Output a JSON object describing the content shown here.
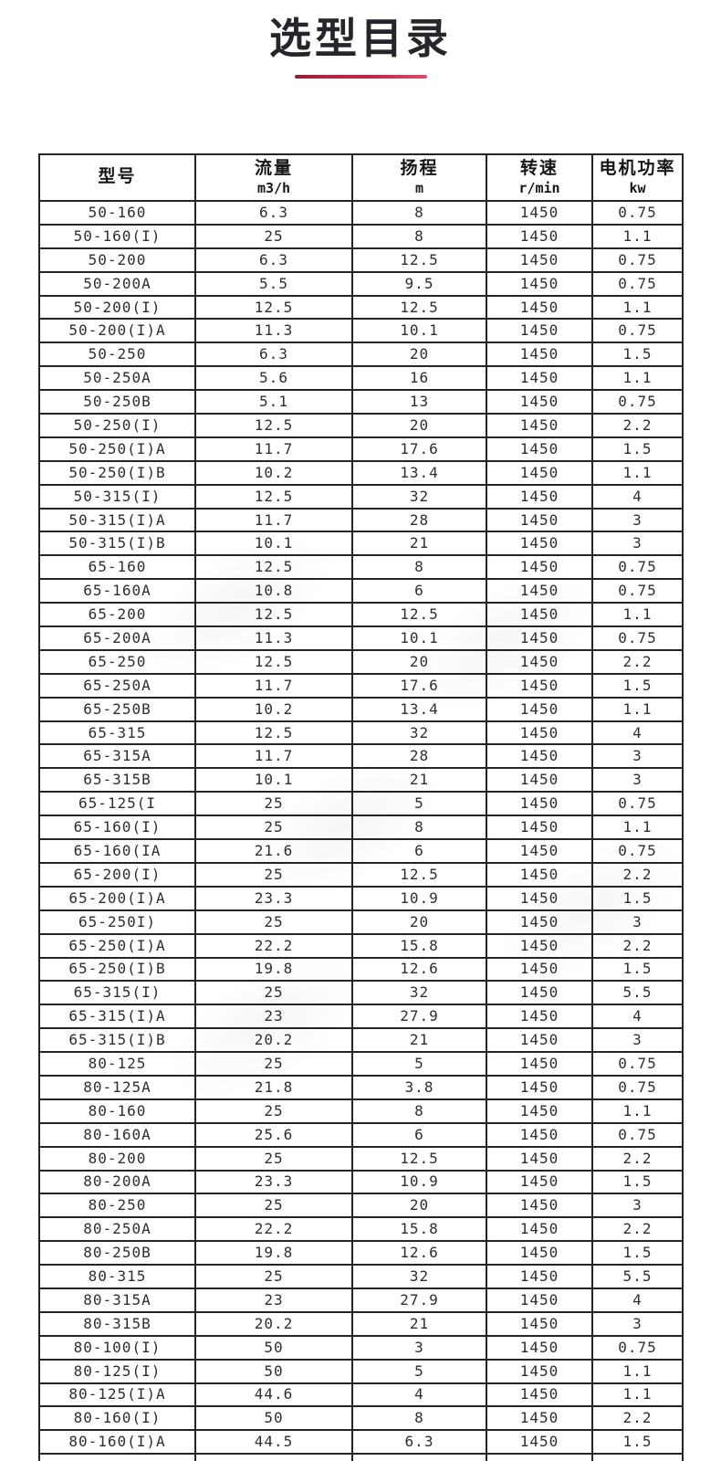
{
  "page": {
    "title": "选型目录"
  },
  "theme": {
    "accent_red": "#c02748",
    "border_color": "#242424",
    "text_color": "#2e2e2e"
  },
  "table": {
    "columns": [
      {
        "label": "型号",
        "unit": ""
      },
      {
        "label": "流量",
        "unit": "m3/h"
      },
      {
        "label": "扬程",
        "unit": "m"
      },
      {
        "label": "转速",
        "unit": "r/min"
      },
      {
        "label": "电机功率",
        "unit": "kw"
      }
    ],
    "rows": [
      [
        "50-160",
        "6.3",
        "8",
        "1450",
        "0.75"
      ],
      [
        "50-160(I)",
        "25",
        "8",
        "1450",
        "1.1"
      ],
      [
        "50-200",
        "6.3",
        "12.5",
        "1450",
        "0.75"
      ],
      [
        "50-200A",
        "5.5",
        "9.5",
        "1450",
        "0.75"
      ],
      [
        "50-200(I)",
        "12.5",
        "12.5",
        "1450",
        "1.1"
      ],
      [
        "50-200(I)A",
        "11.3",
        "10.1",
        "1450",
        "0.75"
      ],
      [
        "50-250",
        "6.3",
        "20",
        "1450",
        "1.5"
      ],
      [
        "50-250A",
        "5.6",
        "16",
        "1450",
        "1.1"
      ],
      [
        "50-250B",
        "5.1",
        "13",
        "1450",
        "0.75"
      ],
      [
        "50-250(I)",
        "12.5",
        "20",
        "1450",
        "2.2"
      ],
      [
        "50-250(I)A",
        "11.7",
        "17.6",
        "1450",
        "1.5"
      ],
      [
        "50-250(I)B",
        "10.2",
        "13.4",
        "1450",
        "1.1"
      ],
      [
        "50-315(I)",
        "12.5",
        "32",
        "1450",
        "4"
      ],
      [
        "50-315(I)A",
        "11.7",
        "28",
        "1450",
        "3"
      ],
      [
        "50-315(I)B",
        "10.1",
        "21",
        "1450",
        "3"
      ],
      [
        "65-160",
        "12.5",
        "8",
        "1450",
        "0.75"
      ],
      [
        "65-160A",
        "10.8",
        "6",
        "1450",
        "0.75"
      ],
      [
        "65-200",
        "12.5",
        "12.5",
        "1450",
        "1.1"
      ],
      [
        "65-200A",
        "11.3",
        "10.1",
        "1450",
        "0.75"
      ],
      [
        "65-250",
        "12.5",
        "20",
        "1450",
        "2.2"
      ],
      [
        "65-250A",
        "11.7",
        "17.6",
        "1450",
        "1.5"
      ],
      [
        "65-250B",
        "10.2",
        "13.4",
        "1450",
        "1.1"
      ],
      [
        "65-315",
        "12.5",
        "32",
        "1450",
        "4"
      ],
      [
        "65-315A",
        "11.7",
        "28",
        "1450",
        "3"
      ],
      [
        "65-315B",
        "10.1",
        "21",
        "1450",
        "3"
      ],
      [
        "65-125(I",
        "25",
        "5",
        "1450",
        "0.75"
      ],
      [
        "65-160(I)",
        "25",
        "8",
        "1450",
        "1.1"
      ],
      [
        "65-160(IA",
        "21.6",
        "6",
        "1450",
        "0.75"
      ],
      [
        "65-200(I)",
        "25",
        "12.5",
        "1450",
        "2.2"
      ],
      [
        "65-200(I)A",
        "23.3",
        "10.9",
        "1450",
        "1.5"
      ],
      [
        "65-250I)",
        "25",
        "20",
        "1450",
        "3"
      ],
      [
        "65-250(I)A",
        "22.2",
        "15.8",
        "1450",
        "2.2"
      ],
      [
        "65-250(I)B",
        "19.8",
        "12.6",
        "1450",
        "1.5"
      ],
      [
        "65-315(I)",
        "25",
        "32",
        "1450",
        "5.5"
      ],
      [
        "65-315(I)A",
        "23",
        "27.9",
        "1450",
        "4"
      ],
      [
        "65-315(I)B",
        "20.2",
        "21",
        "1450",
        "3"
      ],
      [
        "80-125",
        "25",
        "5",
        "1450",
        "0.75"
      ],
      [
        "80-125A",
        "21.8",
        "3.8",
        "1450",
        "0.75"
      ],
      [
        "80-160",
        "25",
        "8",
        "1450",
        "1.1"
      ],
      [
        "80-160A",
        "25.6",
        "6",
        "1450",
        "0.75"
      ],
      [
        "80-200",
        "25",
        "12.5",
        "1450",
        "2.2"
      ],
      [
        "80-200A",
        "23.3",
        "10.9",
        "1450",
        "1.5"
      ],
      [
        "80-250",
        "25",
        "20",
        "1450",
        "3"
      ],
      [
        "80-250A",
        "22.2",
        "15.8",
        "1450",
        "2.2"
      ],
      [
        "80-250B",
        "19.8",
        "12.6",
        "1450",
        "1.5"
      ],
      [
        "80-315",
        "25",
        "32",
        "1450",
        "5.5"
      ],
      [
        "80-315A",
        "23",
        "27.9",
        "1450",
        "4"
      ],
      [
        "80-315B",
        "20.2",
        "21",
        "1450",
        "3"
      ],
      [
        "80-100(I)",
        "50",
        "3",
        "1450",
        "0.75"
      ],
      [
        "80-125(I)",
        "50",
        "5",
        "1450",
        "1.1"
      ],
      [
        "80-125(I)A",
        "44.6",
        "4",
        "1450",
        "1.1"
      ],
      [
        "80-160(I)",
        "50",
        "8",
        "1450",
        "2.2"
      ],
      [
        "80-160(I)A",
        "44.5",
        "6.3",
        "1450",
        "1.5"
      ]
    ]
  }
}
